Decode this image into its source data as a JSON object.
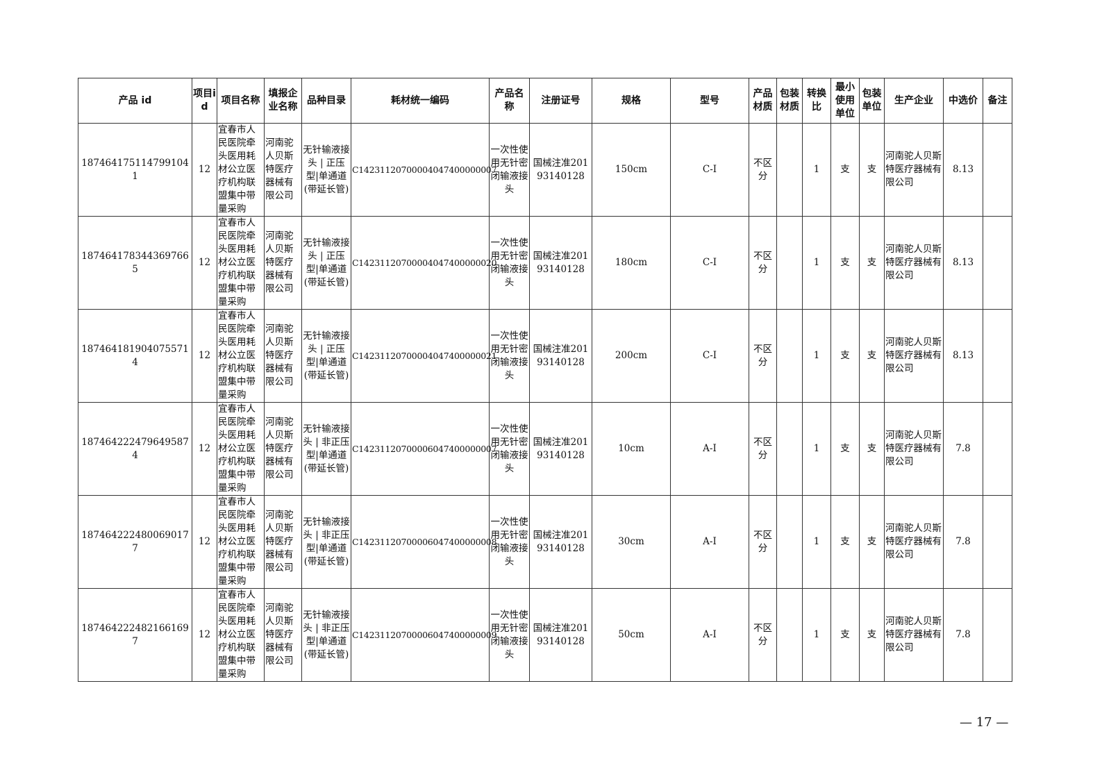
{
  "table": {
    "headers": [
      "产品 id",
      "项目id",
      "项目名称",
      "填报企业名称",
      "品种目录",
      "耗材统一编码",
      "产品名称",
      "注册证号",
      "规格",
      "型号",
      "产品材质",
      "包装材质",
      "转换比",
      "最小使用单位",
      "包装单位",
      "生产企业",
      "中选价",
      "备注"
    ],
    "rows": [
      [
        "1874641751147991041",
        "12",
        "宜春市人民医院牵头医用耗材公立医疗机构联盟集中带量采购",
        "河南驼人贝斯特医疗器械有限公司",
        "无针输液接头 | 正压型|单通道(带延长管)",
        "C14231120700004047400000007",
        "一次性使用无针密闭输液接头",
        "国械注准20193140128",
        "150cm",
        "C-I",
        "不区分",
        "",
        "1",
        "支",
        "支",
        "河南驼人贝斯特医疗器械有限公司",
        "8.13",
        ""
      ],
      [
        "1874641783443697665",
        "12",
        "宜春市人民医院牵头医用耗材公立医疗机构联盟集中带量采购",
        "河南驼人贝斯特医疗器械有限公司",
        "无针输液接头 | 正压型|单通道(带延长管)",
        "C14231120700004047400000020",
        "一次性使用无针密闭输液接头",
        "国械注准20193140128",
        "180cm",
        "C-I",
        "不区分",
        "",
        "1",
        "支",
        "支",
        "河南驼人贝斯特医疗器械有限公司",
        "8.13",
        ""
      ],
      [
        "1874641819040755714",
        "12",
        "宜春市人民医院牵头医用耗材公立医疗机构联盟集中带量采购",
        "河南驼人贝斯特医疗器械有限公司",
        "无针输液接头 | 正压型|单通道(带延长管)",
        "C14231120700004047400000021",
        "一次性使用无针密闭输液接头",
        "国械注准20193140128",
        "200cm",
        "C-I",
        "不区分",
        "",
        "1",
        "支",
        "支",
        "河南驼人贝斯特医疗器械有限公司",
        "8.13",
        ""
      ],
      [
        "1874642224796495874",
        "12",
        "宜春市人民医院牵头医用耗材公立医疗机构联盟集中带量采购",
        "河南驼人贝斯特医疗器械有限公司",
        "无针输液接头 | 非正压型|单通道(带延长管)",
        "C14231120700006047400000007",
        "一次性使用无针密闭输液接头",
        "国械注准20193140128",
        "10cm",
        "A-I",
        "不区分",
        "",
        "1",
        "支",
        "支",
        "河南驼人贝斯特医疗器械有限公司",
        "7.8",
        ""
      ],
      [
        "1874642224800690177",
        "12",
        "宜春市人民医院牵头医用耗材公立医疗机构联盟集中带量采购",
        "河南驼人贝斯特医疗器械有限公司",
        "无针输液接头 | 非正压型|单通道(带延长管)",
        "C14231120700006047400000008",
        "一次性使用无针密闭输液接头",
        "国械注准20193140128",
        "30cm",
        "A-I",
        "不区分",
        "",
        "1",
        "支",
        "支",
        "河南驼人贝斯特医疗器械有限公司",
        "7.8",
        ""
      ],
      [
        "1874642224821661697",
        "12",
        "宜春市人民医院牵头医用耗材公立医疗机构联盟集中带量采购",
        "河南驼人贝斯特医疗器械有限公司",
        "无针输液接头 | 非正压型|单通道(带延长管)",
        "C14231120700006047400000009",
        "一次性使用无针密闭输液接头",
        "国械注准20193140128",
        "50cm",
        "A-I",
        "不区分",
        "",
        "1",
        "支",
        "支",
        "河南驼人贝斯特医疗器械有限公司",
        "7.8",
        ""
      ]
    ]
  },
  "page_number": "— 17 —"
}
